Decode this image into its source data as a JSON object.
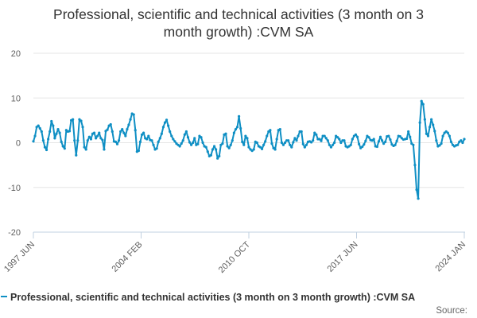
{
  "colors": {
    "series": "#0f8fc4",
    "grid": "#e6e6e6",
    "axis": "#c0d0e0",
    "text": "#333333",
    "tick_text": "#606060"
  },
  "chart_data": {
    "type": "line",
    "title_lines": [
      "Professional, scientific and technical activities (3 month on 3",
      "month growth) :CVM SA"
    ],
    "xlabel": "",
    "ylabel": "",
    "ylim": [
      -20,
      20
    ],
    "yticks": [
      20,
      10,
      0,
      -10,
      -20
    ],
    "x_start": "1997 JUN",
    "x_end": "2024 JAN",
    "xtick_labels": [
      "1997 JUN",
      "2004 FEB",
      "2010 OCT",
      "2017 JUN",
      "2024 JAN"
    ],
    "grid": true,
    "legend_position": "bottom",
    "source_label": "Source:",
    "series": [
      {
        "name": "Professional, scientific and technical activities (3 month on 3 month growth) :CVM SA",
        "values": [
          0.3,
          1.5,
          3.5,
          3.8,
          3.2,
          2.5,
          0.5,
          -1.0,
          -1.6,
          0.8,
          2.5,
          4.8,
          3.8,
          1.0,
          2.0,
          3.0,
          2.2,
          0.2,
          -0.8,
          -1.3,
          2.8,
          2.5,
          2.6,
          5.0,
          5.2,
          0.5,
          -2.8,
          0.5,
          5.2,
          4.9,
          3.5,
          -1.0,
          -1.5,
          0.5,
          1.3,
          0.8,
          2.0,
          2.2,
          1.0,
          1.5,
          2.2,
          1.0,
          0.6,
          -1.5,
          2.6,
          2.9,
          3.8,
          4.1,
          2.5,
          0.3,
          0.2,
          -0.3,
          0.5,
          2.5,
          3.0,
          2.2,
          1.5,
          3.0,
          4.0,
          5.2,
          6.5,
          6.3,
          2.8,
          -2.0,
          -1.8,
          0.2,
          1.8,
          2.2,
          1.0,
          0.8,
          1.5,
          0.6,
          0.5,
          -0.5,
          -1.5,
          -1.3,
          0.2,
          1.0,
          2.0,
          3.5,
          4.5,
          5.1,
          3.8,
          2.5,
          1.5,
          0.8,
          0.3,
          -0.2,
          -0.5,
          -0.8,
          -0.2,
          0.5,
          1.8,
          2.5,
          1.2,
          0.1,
          -0.5,
          0.0,
          1.0,
          -0.5,
          -0.3,
          1.5,
          1.2,
          0.0,
          -0.8,
          -1.0,
          -2.0,
          -3.0,
          -2.8,
          -1.5,
          -0.8,
          -1.5,
          -3.5,
          -3.0,
          -0.5,
          -0.2,
          1.8,
          2.0,
          -0.8,
          -1.2,
          -0.5,
          0.5,
          2.2,
          3.0,
          3.5,
          5.9,
          3.2,
          0.2,
          -0.5,
          1.5,
          1.0,
          -1.0,
          -1.5,
          -1.8,
          -1.5,
          0.2,
          0.0,
          -0.8,
          -1.0,
          -1.4,
          -0.5,
          0.3,
          1.5,
          2.5,
          2.8,
          -0.2,
          -1.2,
          -1.5,
          0.8,
          2.8,
          3.0,
          0.0,
          -0.5,
          0.0,
          0.5,
          0.5,
          -0.5,
          -1.0,
          0.1,
          1.0,
          0.5,
          1.5,
          2.5,
          2.5,
          -0.3,
          -1.0,
          -0.5,
          0.2,
          0.3,
          0.1,
          0.5,
          2.2,
          1.8,
          0.8,
          0.8,
          0.4,
          1.5,
          1.5,
          1.0,
          0.5,
          -0.5,
          -1.0,
          -0.5,
          0.0,
          1.5,
          1.2,
          0.8,
          0.0,
          0.5,
          0.5,
          -0.8,
          -1.0,
          -0.8,
          -0.5,
          0.8,
          1.5,
          1.8,
          1.3,
          -0.3,
          -1.2,
          -0.9,
          -0.4,
          0.4,
          1.5,
          1.2,
          0.6,
          0.5,
          0.8,
          -0.8,
          -0.9,
          0.3,
          1.3,
          0.5,
          -0.2,
          0.2,
          1.4,
          1.5,
          0.7,
          -0.4,
          -0.7,
          -0.5,
          0.4,
          1.5,
          1.4,
          1.0,
          0.7,
          0.8,
          0.9,
          2.5,
          1.3,
          -0.2,
          -0.5,
          -5.0,
          -10.5,
          -12.5,
          4.5,
          9.3,
          8.6,
          5.2,
          2.0,
          1.5,
          3.5,
          5.2,
          4.0,
          2.6,
          0.5,
          -0.8,
          -0.6,
          -0.2,
          1.5,
          2.2,
          2.5,
          2.2,
          1.5,
          0.2,
          -0.5,
          -0.8,
          -0.6,
          -0.5,
          0.2,
          0.5,
          0.0,
          0.8
        ]
      }
    ]
  }
}
